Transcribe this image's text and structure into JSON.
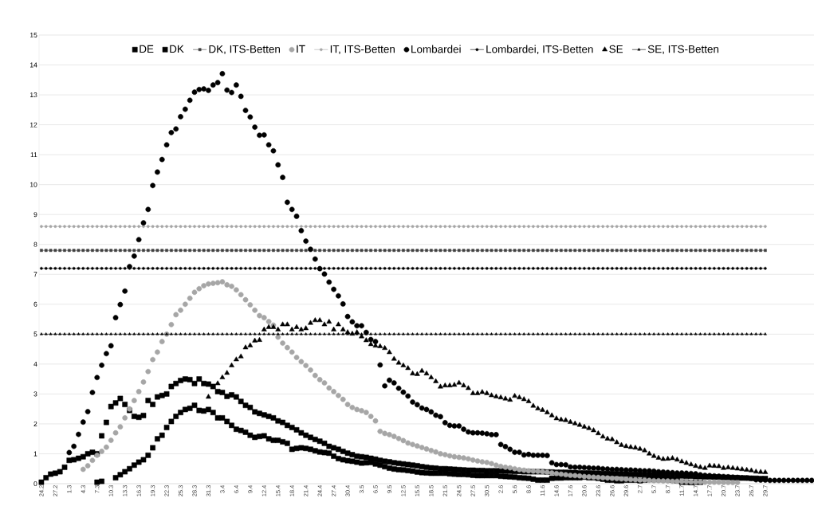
{
  "chart_data": {
    "type": "scatter",
    "categories": [
      "24.2",
      null,
      null,
      "27.2",
      null,
      null,
      "1.3",
      null,
      null,
      "4.3",
      null,
      null,
      "7.3",
      null,
      null,
      "10.3",
      null,
      null,
      "13.3",
      null,
      null,
      "16.3",
      null,
      null,
      "19.3",
      null,
      null,
      "22.3",
      null,
      null,
      "25.3",
      null,
      null,
      "28.3",
      null,
      null,
      "31.3",
      null,
      null,
      "3.4",
      null,
      null,
      "6.4",
      null,
      null,
      "9.4",
      null,
      null,
      "12.4",
      null,
      null,
      "15.4",
      null,
      null,
      "18.4",
      null,
      null,
      "21.4",
      null,
      null,
      "24.4",
      null,
      null,
      "27.4",
      null,
      null,
      "30.4",
      null,
      null,
      "3.5",
      null,
      null,
      "6.5",
      null,
      null,
      "9.5",
      null,
      null,
      "12.5",
      null,
      null,
      "15.5",
      null,
      null,
      "18.5",
      null,
      null,
      "21.5",
      null,
      null,
      "24.5",
      null,
      null,
      "27.5",
      null,
      null,
      "30.5",
      null,
      null,
      "2.6",
      null,
      null,
      "5.6",
      null,
      null,
      "8.6",
      null,
      null,
      "11.6",
      null,
      null,
      "14.6",
      null,
      null,
      "17.6",
      null,
      null,
      "20.6",
      null,
      null,
      "23.6",
      null,
      null,
      "26.6",
      null,
      null,
      "29.6",
      null,
      null,
      "2.7",
      null,
      null,
      "5.7",
      null,
      null,
      "8.7",
      null,
      null,
      "11.7",
      null,
      null,
      "14.7",
      null,
      null,
      "17.7",
      null,
      null,
      "20.7",
      null,
      null,
      "23.7",
      null,
      null,
      "26.7",
      null,
      null,
      "29.7",
      null,
      null,
      null,
      null,
      null,
      null,
      null,
      null,
      null,
      null
    ],
    "ylim": [
      0,
      15
    ],
    "yticks": [
      0,
      1,
      2,
      3,
      4,
      5,
      6,
      7,
      8,
      9,
      10,
      11,
      12,
      13,
      14,
      15
    ],
    "grid": "y",
    "legend": "top",
    "series": [
      {
        "name": "DE",
        "color": "#000000",
        "marker": "square",
        "values": [
          0.05,
          0.2,
          0.32,
          0.35,
          0.4,
          0.55,
          0.78,
          0.8,
          0.85,
          0.9,
          1.0,
          1.05,
          1.0,
          1.6,
          2.05,
          2.58,
          2.7,
          2.85,
          2.65,
          2.45,
          2.25,
          2.22,
          2.28,
          2.78,
          2.65,
          2.9,
          2.95,
          3.0,
          3.25,
          3.35,
          3.45,
          3.5,
          3.48,
          3.35,
          3.5,
          3.35,
          3.33,
          3.25,
          3.08,
          3.05,
          2.92,
          2.97,
          2.9,
          2.75,
          2.62,
          2.55,
          2.4,
          2.35,
          2.3,
          2.25,
          2.2,
          2.1,
          2.05,
          1.95,
          1.88,
          1.8,
          1.7,
          1.62,
          1.55,
          1.48,
          1.42,
          1.35,
          1.25,
          1.2,
          1.15,
          1.08,
          1.02,
          0.97,
          0.92,
          0.9,
          0.88,
          0.85,
          0.82,
          0.78,
          0.75,
          0.73,
          0.7,
          0.68,
          0.66,
          0.64,
          0.62,
          0.6,
          0.57,
          0.55,
          0.53,
          0.52,
          0.5,
          0.5,
          0.49,
          0.48,
          0.47,
          0.46,
          0.45,
          0.45,
          0.44,
          0.44,
          0.43,
          0.43,
          0.43,
          0.43,
          0.42,
          0.42,
          0.41,
          0.41,
          0.4,
          0.4,
          0.4,
          0.4,
          0.4,
          0.39,
          0.39,
          0.38,
          0.38,
          0.38,
          0.37,
          0.37,
          0.36,
          0.36,
          0.36,
          0.35,
          0.35,
          0.34,
          0.34,
          0.33,
          0.33,
          0.32,
          0.32,
          0.31,
          0.31,
          0.3,
          0.3,
          0.29,
          0.29,
          0.28,
          0.28,
          0.27,
          0.27,
          0.26,
          0.26,
          0.25,
          0.25,
          0.24,
          0.24,
          0.23,
          0.23,
          0.22,
          0.22,
          0.21,
          0.21,
          0.2,
          0.2,
          0.19,
          0.19,
          0.18,
          0.18,
          0.17,
          0.17,
          null,
          null,
          null,
          null,
          null,
          null,
          null,
          null,
          null,
          null
        ]
      },
      {
        "name": "DK",
        "color": "#000000",
        "marker": "square",
        "values": [
          null,
          null,
          null,
          null,
          null,
          null,
          null,
          null,
          null,
          null,
          null,
          null,
          0.05,
          0.08,
          null,
          null,
          0.2,
          0.3,
          0.4,
          0.5,
          0.62,
          0.72,
          0.8,
          0.95,
          1.2,
          1.5,
          1.62,
          1.88,
          2.08,
          2.25,
          2.38,
          2.48,
          2.52,
          2.62,
          2.45,
          2.43,
          2.48,
          2.38,
          2.2,
          2.2,
          2.08,
          1.95,
          1.82,
          1.78,
          1.72,
          1.62,
          1.55,
          1.58,
          1.6,
          1.5,
          1.45,
          1.45,
          1.4,
          1.35,
          1.15,
          1.18,
          1.2,
          1.18,
          1.15,
          1.1,
          1.06,
          1.04,
          1.02,
          0.92,
          0.84,
          0.8,
          0.77,
          0.75,
          0.72,
          0.69,
          0.7,
          0.71,
          0.66,
          0.62,
          0.57,
          0.52,
          0.49,
          0.47,
          0.46,
          0.44,
          0.42,
          0.39,
          0.37,
          0.36,
          0.35,
          0.35,
          0.35,
          0.35,
          0.33,
          0.32,
          0.31,
          0.31,
          0.3,
          0.28,
          0.27,
          0.27,
          0.27,
          0.27,
          0.27,
          0.25,
          0.24,
          0.23,
          0.22,
          0.2,
          0.19,
          0.18,
          0.15,
          0.12,
          0.12,
          0.12,
          0.18,
          0.19,
          0.19,
          0.2,
          0.2,
          0.2,
          0.2,
          0.22,
          0.2,
          0.2,
          0.18,
          0.15,
          0.12,
          0.12,
          0.1,
          0.1,
          0.12,
          0.12,
          0.12,
          0.1,
          0.12,
          0.14,
          0.14,
          0.14,
          0.14,
          0.14,
          0.12,
          0.1,
          0.05,
          0.05,
          0.04,
          0.05,
          0.05,
          null,
          null,
          null,
          null,
          null,
          null,
          null,
          null,
          null,
          null,
          null,
          null,
          null,
          null,
          null,
          null,
          null,
          null,
          null,
          null,
          null,
          null,
          null,
          null
        ]
      },
      {
        "name": "DK, ITS-Betten",
        "color": "#404040",
        "type": "line",
        "marker": "square",
        "values": [
          7.8,
          7.8,
          7.8,
          7.8,
          7.8,
          7.8,
          7.8,
          7.8,
          7.8,
          7.8,
          7.8,
          7.8,
          7.8,
          7.8,
          7.8,
          7.8,
          7.8,
          7.8,
          7.8,
          7.8,
          7.8,
          7.8,
          7.8,
          7.8,
          7.8,
          7.8,
          7.8,
          7.8,
          7.8,
          7.8,
          7.8,
          7.8,
          7.8,
          7.8,
          7.8,
          7.8,
          7.8,
          7.8,
          7.8,
          7.8,
          7.8,
          7.8,
          7.8,
          7.8,
          7.8,
          7.8,
          7.8,
          7.8,
          7.8,
          7.8,
          7.8,
          7.8,
          7.8,
          7.8,
          7.8,
          7.8,
          7.8,
          7.8,
          7.8,
          7.8,
          7.8,
          7.8,
          7.8,
          7.8,
          7.8,
          7.8,
          7.8,
          7.8,
          7.8,
          7.8,
          7.8,
          7.8,
          7.8,
          7.8,
          7.8,
          7.8,
          7.8,
          7.8,
          7.8,
          7.8,
          7.8,
          7.8,
          7.8,
          7.8,
          7.8,
          7.8,
          7.8,
          7.8,
          7.8,
          7.8,
          7.8,
          7.8,
          7.8,
          7.8,
          7.8,
          7.8,
          7.8,
          7.8,
          7.8,
          7.8,
          7.8,
          7.8,
          7.8,
          7.8,
          7.8,
          7.8,
          7.8,
          7.8,
          7.8,
          7.8,
          7.8,
          7.8,
          7.8,
          7.8,
          7.8,
          7.8,
          7.8,
          7.8,
          7.8,
          7.8,
          7.8,
          7.8,
          7.8,
          7.8,
          7.8,
          7.8,
          7.8,
          7.8,
          7.8,
          7.8,
          7.8,
          7.8,
          7.8,
          7.8,
          7.8,
          7.8,
          7.8,
          7.8,
          7.8,
          7.8,
          7.8,
          7.8,
          7.8,
          7.8,
          7.8,
          7.8,
          7.8,
          7.8,
          7.8,
          7.8,
          7.8,
          7.8,
          7.8,
          7.8,
          7.8,
          7.8,
          7.8,
          null,
          null,
          null,
          null,
          null,
          null,
          null,
          null,
          null,
          null
        ]
      },
      {
        "name": "IT",
        "color": "#a6a6a6",
        "marker": "circle",
        "values": [
          null,
          null,
          null,
          null,
          null,
          null,
          null,
          null,
          null,
          0.48,
          0.6,
          0.78,
          0.95,
          1.08,
          1.22,
          1.45,
          1.7,
          1.9,
          2.2,
          2.5,
          2.78,
          3.08,
          3.4,
          3.75,
          4.15,
          4.4,
          4.75,
          5.0,
          5.32,
          5.65,
          5.8,
          6.0,
          6.2,
          6.4,
          6.52,
          6.62,
          6.68,
          6.7,
          6.72,
          6.75,
          6.65,
          6.6,
          6.48,
          6.32,
          6.15,
          5.98,
          5.8,
          5.62,
          5.55,
          5.42,
          5.3,
          4.9,
          4.7,
          4.55,
          4.4,
          4.22,
          4.08,
          3.95,
          3.8,
          3.62,
          3.48,
          3.37,
          3.2,
          3.08,
          2.95,
          2.82,
          2.65,
          2.55,
          2.48,
          2.44,
          2.38,
          2.25,
          2.1,
          1.75,
          1.68,
          1.64,
          1.58,
          1.51,
          1.44,
          1.36,
          1.31,
          1.26,
          1.21,
          1.16,
          1.11,
          1.06,
          1.0,
          0.97,
          0.93,
          0.9,
          0.88,
          0.86,
          0.83,
          0.79,
          0.76,
          0.73,
          0.71,
          0.67,
          0.62,
          0.58,
          0.55,
          0.53,
          0.5,
          0.47,
          0.45,
          0.43,
          0.42,
          0.41,
          0.4,
          0.38,
          0.36,
          0.34,
          0.32,
          0.3,
          0.28,
          0.27,
          0.26,
          0.24,
          0.23,
          0.22,
          0.21,
          0.2,
          0.19,
          0.18,
          0.17,
          0.16,
          0.15,
          0.14,
          0.13,
          0.12,
          0.12,
          0.11,
          0.1,
          0.1,
          0.09,
          0.09,
          0.08,
          0.08,
          0.07,
          0.07,
          0.06,
          0.06,
          0.06,
          0.05,
          0.05,
          0.05,
          0.05,
          0.04,
          0.04,
          0.04,
          0.04,
          null,
          null,
          null,
          null,
          null,
          null,
          null,
          null,
          null,
          null,
          null,
          null,
          null,
          null,
          null,
          null
        ]
      },
      {
        "name": "IT, ITS-Betten",
        "color": "#a6a6a6",
        "type": "line",
        "marker": "circle",
        "values": [
          8.6,
          8.6,
          8.6,
          8.6,
          8.6,
          8.6,
          8.6,
          8.6,
          8.6,
          8.6,
          8.6,
          8.6,
          8.6,
          8.6,
          8.6,
          8.6,
          8.6,
          8.6,
          8.6,
          8.6,
          8.6,
          8.6,
          8.6,
          8.6,
          8.6,
          8.6,
          8.6,
          8.6,
          8.6,
          8.6,
          8.6,
          8.6,
          8.6,
          8.6,
          8.6,
          8.6,
          8.6,
          8.6,
          8.6,
          8.6,
          8.6,
          8.6,
          8.6,
          8.6,
          8.6,
          8.6,
          8.6,
          8.6,
          8.6,
          8.6,
          8.6,
          8.6,
          8.6,
          8.6,
          8.6,
          8.6,
          8.6,
          8.6,
          8.6,
          8.6,
          8.6,
          8.6,
          8.6,
          8.6,
          8.6,
          8.6,
          8.6,
          8.6,
          8.6,
          8.6,
          8.6,
          8.6,
          8.6,
          8.6,
          8.6,
          8.6,
          8.6,
          8.6,
          8.6,
          8.6,
          8.6,
          8.6,
          8.6,
          8.6,
          8.6,
          8.6,
          8.6,
          8.6,
          8.6,
          8.6,
          8.6,
          8.6,
          8.6,
          8.6,
          8.6,
          8.6,
          8.6,
          8.6,
          8.6,
          8.6,
          8.6,
          8.6,
          8.6,
          8.6,
          8.6,
          8.6,
          8.6,
          8.6,
          8.6,
          8.6,
          8.6,
          8.6,
          8.6,
          8.6,
          8.6,
          8.6,
          8.6,
          8.6,
          8.6,
          8.6,
          8.6,
          8.6,
          8.6,
          8.6,
          8.6,
          8.6,
          8.6,
          8.6,
          8.6,
          8.6,
          8.6,
          8.6,
          8.6,
          8.6,
          8.6,
          8.6,
          8.6,
          8.6,
          8.6,
          8.6,
          8.6,
          8.6,
          8.6,
          8.6,
          8.6,
          8.6,
          8.6,
          8.6,
          8.6,
          8.6,
          8.6,
          8.6,
          8.6,
          8.6,
          8.6,
          8.6,
          8.6,
          null,
          null,
          null,
          null,
          null,
          null,
          null,
          null,
          null,
          null
        ]
      },
      {
        "name": "Lombardei",
        "color": "#000000",
        "marker": "circle",
        "values": [
          null,
          null,
          null,
          null,
          null,
          null,
          1.04,
          1.25,
          1.65,
          2.06,
          2.41,
          3.05,
          3.55,
          3.96,
          4.35,
          4.61,
          5.55,
          5.99,
          6.44,
          7.26,
          7.61,
          8.16,
          8.72,
          9.17,
          9.97,
          10.42,
          10.84,
          11.33,
          11.74,
          11.86,
          12.27,
          12.52,
          12.82,
          13.09,
          13.18,
          13.2,
          13.15,
          13.33,
          13.41,
          13.71,
          13.16,
          13.08,
          13.33,
          12.95,
          12.48,
          12.26,
          11.92,
          11.65,
          11.66,
          11.33,
          11.13,
          10.66,
          10.24,
          9.41,
          9.17,
          8.94,
          8.46,
          8.11,
          7.84,
          7.51,
          7.19,
          7.01,
          6.74,
          6.5,
          6.28,
          6.01,
          5.59,
          5.41,
          5.28,
          5.28,
          5.06,
          4.82,
          4.75,
          3.97,
          3.27,
          3.46,
          3.37,
          3.19,
          3.06,
          2.93,
          2.73,
          2.64,
          2.53,
          2.48,
          2.4,
          2.29,
          2.24,
          2.04,
          1.95,
          1.93,
          1.93,
          1.82,
          1.73,
          1.7,
          1.7,
          1.69,
          1.67,
          1.64,
          1.64,
          1.31,
          1.24,
          1.15,
          1.05,
          1.05,
          0.96,
          0.98,
          0.95,
          0.95,
          0.95,
          0.94,
          0.7,
          0.64,
          0.64,
          0.63,
          0.56,
          0.55,
          0.55,
          0.54,
          0.53,
          0.52,
          0.52,
          0.5,
          0.49,
          0.48,
          0.48,
          0.47,
          0.46,
          0.46,
          0.45,
          0.44,
          0.43,
          0.43,
          0.42,
          0.4,
          0.39,
          0.38,
          0.37,
          0.36,
          0.36,
          0.35,
          0.34,
          0.33,
          0.3,
          0.28,
          0.27,
          0.26,
          0.25,
          0.24,
          0.23,
          0.22,
          0.21,
          0.2,
          0.19,
          0.18,
          0.13,
          0.12,
          0.12,
          0.11,
          0.11,
          0.11,
          0.11,
          0.11,
          0.11,
          0.11,
          0.11,
          0.11,
          0.11
        ]
      },
      {
        "name": "Lombardei, ITS-Betten",
        "color": "#000000",
        "type": "line",
        "marker": "circle",
        "values": [
          7.2,
          7.2,
          7.2,
          7.2,
          7.2,
          7.2,
          7.2,
          7.2,
          7.2,
          7.2,
          7.2,
          7.2,
          7.2,
          7.2,
          7.2,
          7.2,
          7.2,
          7.2,
          7.2,
          7.2,
          7.2,
          7.2,
          7.2,
          7.2,
          7.2,
          7.2,
          7.2,
          7.2,
          7.2,
          7.2,
          7.2,
          7.2,
          7.2,
          7.2,
          7.2,
          7.2,
          7.2,
          7.2,
          7.2,
          7.2,
          7.2,
          7.2,
          7.2,
          7.2,
          7.2,
          7.2,
          7.2,
          7.2,
          7.2,
          7.2,
          7.2,
          7.2,
          7.2,
          7.2,
          7.2,
          7.2,
          7.2,
          7.2,
          7.2,
          7.2,
          7.2,
          7.2,
          7.2,
          7.2,
          7.2,
          7.2,
          7.2,
          7.2,
          7.2,
          7.2,
          7.2,
          7.2,
          7.2,
          7.2,
          7.2,
          7.2,
          7.2,
          7.2,
          7.2,
          7.2,
          7.2,
          7.2,
          7.2,
          7.2,
          7.2,
          7.2,
          7.2,
          7.2,
          7.2,
          7.2,
          7.2,
          7.2,
          7.2,
          7.2,
          7.2,
          7.2,
          7.2,
          7.2,
          7.2,
          7.2,
          7.2,
          7.2,
          7.2,
          7.2,
          7.2,
          7.2,
          7.2,
          7.2,
          7.2,
          7.2,
          7.2,
          7.2,
          7.2,
          7.2,
          7.2,
          7.2,
          7.2,
          7.2,
          7.2,
          7.2,
          7.2,
          7.2,
          7.2,
          7.2,
          7.2,
          7.2,
          7.2,
          7.2,
          7.2,
          7.2,
          7.2,
          7.2,
          7.2,
          7.2,
          7.2,
          7.2,
          7.2,
          7.2,
          7.2,
          7.2,
          7.2,
          7.2,
          7.2,
          7.2,
          7.2,
          7.2,
          7.2,
          7.2,
          7.2,
          7.2,
          7.2,
          7.2,
          7.2,
          7.2,
          7.2,
          7.2,
          7.2,
          null,
          null,
          null,
          null,
          null,
          null,
          null,
          null,
          null,
          null
        ]
      },
      {
        "name": "SE",
        "color": "#000000",
        "marker": "triangle",
        "values": [
          null,
          null,
          null,
          null,
          null,
          null,
          null,
          null,
          null,
          null,
          null,
          null,
          null,
          null,
          null,
          null,
          null,
          null,
          null,
          null,
          null,
          null,
          null,
          null,
          null,
          null,
          null,
          null,
          null,
          null,
          null,
          null,
          null,
          null,
          null,
          null,
          2.9,
          null,
          3.35,
          3.55,
          3.7,
          3.95,
          4.15,
          4.25,
          4.55,
          4.62,
          4.78,
          4.8,
          5.15,
          5.23,
          5.23,
          5.15,
          5.32,
          5.32,
          5.15,
          5.23,
          5.15,
          5.19,
          5.37,
          5.46,
          5.46,
          5.32,
          5.41,
          5.15,
          5.32,
          5.15,
          5.06,
          5.01,
          5.06,
          4.92,
          4.79,
          4.66,
          4.61,
          4.59,
          4.53,
          4.39,
          4.17,
          4.04,
          3.95,
          3.86,
          3.68,
          3.66,
          3.77,
          3.68,
          3.55,
          3.42,
          3.24,
          3.28,
          3.28,
          3.3,
          3.37,
          3.28,
          3.19,
          3.02,
          3.02,
          3.06,
          3.02,
          2.95,
          2.91,
          2.88,
          2.84,
          2.8,
          2.93,
          2.88,
          2.82,
          2.75,
          2.6,
          2.51,
          2.46,
          2.38,
          2.28,
          2.18,
          2.14,
          2.12,
          2.06,
          2.01,
          1.96,
          1.9,
          1.85,
          1.78,
          1.68,
          1.57,
          1.5,
          1.48,
          1.38,
          1.29,
          1.25,
          1.22,
          1.2,
          1.16,
          1.11,
          1.0,
          0.92,
          0.86,
          0.82,
          0.83,
          0.85,
          0.8,
          0.74,
          0.69,
          0.64,
          0.59,
          0.55,
          0.52,
          0.6,
          0.59,
          0.58,
          0.52,
          0.54,
          0.52,
          0.5,
          0.48,
          0.46,
          0.44,
          0.4,
          0.39,
          0.38,
          null,
          null,
          null,
          null,
          null,
          null,
          null,
          null,
          null,
          null
        ]
      },
      {
        "name": "SE, ITS-Betten",
        "color": "#000000",
        "type": "line",
        "marker": "triangle",
        "values": [
          5.0,
          5.0,
          5.0,
          5.0,
          5.0,
          5.0,
          5.0,
          5.0,
          5.0,
          5.0,
          5.0,
          5.0,
          5.0,
          5.0,
          5.0,
          5.0,
          5.0,
          5.0,
          5.0,
          5.0,
          5.0,
          5.0,
          5.0,
          5.0,
          5.0,
          5.0,
          5.0,
          5.0,
          5.0,
          5.0,
          5.0,
          5.0,
          5.0,
          5.0,
          5.0,
          5.0,
          5.0,
          5.0,
          5.0,
          5.0,
          5.0,
          5.0,
          5.0,
          5.0,
          5.0,
          5.0,
          5.0,
          5.0,
          5.0,
          5.0,
          5.0,
          5.0,
          5.0,
          5.0,
          5.0,
          5.0,
          5.0,
          5.0,
          5.0,
          5.0,
          5.0,
          5.0,
          5.0,
          5.0,
          5.0,
          5.0,
          5.0,
          5.0,
          5.0,
          5.0,
          5.0,
          5.0,
          5.0,
          5.0,
          5.0,
          5.0,
          5.0,
          5.0,
          5.0,
          5.0,
          5.0,
          5.0,
          5.0,
          5.0,
          5.0,
          5.0,
          5.0,
          5.0,
          5.0,
          5.0,
          5.0,
          5.0,
          5.0,
          5.0,
          5.0,
          5.0,
          5.0,
          5.0,
          5.0,
          5.0,
          5.0,
          5.0,
          5.0,
          5.0,
          5.0,
          5.0,
          5.0,
          5.0,
          5.0,
          5.0,
          5.0,
          5.0,
          5.0,
          5.0,
          5.0,
          5.0,
          5.0,
          5.0,
          5.0,
          5.0,
          5.0,
          5.0,
          5.0,
          5.0,
          5.0,
          5.0,
          5.0,
          5.0,
          5.0,
          5.0,
          5.0,
          5.0,
          5.0,
          5.0,
          5.0,
          5.0,
          5.0,
          5.0,
          5.0,
          5.0,
          5.0,
          5.0,
          5.0,
          5.0,
          5.0,
          5.0,
          5.0,
          5.0,
          5.0,
          5.0,
          5.0,
          5.0,
          5.0,
          5.0,
          5.0,
          5.0,
          5.0,
          null,
          null,
          null,
          null,
          null,
          null,
          null,
          null,
          null,
          null
        ]
      }
    ]
  }
}
